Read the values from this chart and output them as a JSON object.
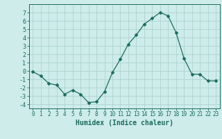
{
  "x": [
    0,
    1,
    2,
    3,
    4,
    5,
    6,
    7,
    8,
    9,
    10,
    11,
    12,
    13,
    14,
    15,
    16,
    17,
    18,
    19,
    20,
    21,
    22,
    23
  ],
  "y": [
    -0.1,
    -0.6,
    -1.5,
    -1.7,
    -2.8,
    -2.3,
    -2.8,
    -3.8,
    -3.7,
    -2.5,
    -0.2,
    1.4,
    3.2,
    4.3,
    5.6,
    6.3,
    7.0,
    6.6,
    4.6,
    1.5,
    -0.4,
    -0.4,
    -1.2,
    -1.2
  ],
  "line_color": "#1a6b5a",
  "marker": "D",
  "marker_size": 2.5,
  "bg_color": "#cdecea",
  "grid_color": "#aed4cf",
  "xlabel": "Humidex (Indice chaleur)",
  "xlim": [
    -0.5,
    23.5
  ],
  "ylim": [
    -4.5,
    8.0
  ],
  "yticks": [
    -4,
    -3,
    -2,
    -1,
    0,
    1,
    2,
    3,
    4,
    5,
    6,
    7
  ],
  "xticks": [
    0,
    1,
    2,
    3,
    4,
    5,
    6,
    7,
    8,
    9,
    10,
    11,
    12,
    13,
    14,
    15,
    16,
    17,
    18,
    19,
    20,
    21,
    22,
    23
  ],
  "tick_color": "#1a6b5a",
  "xtick_fontsize": 5.5,
  "ytick_fontsize": 6.0,
  "xlabel_fontsize": 7.0
}
